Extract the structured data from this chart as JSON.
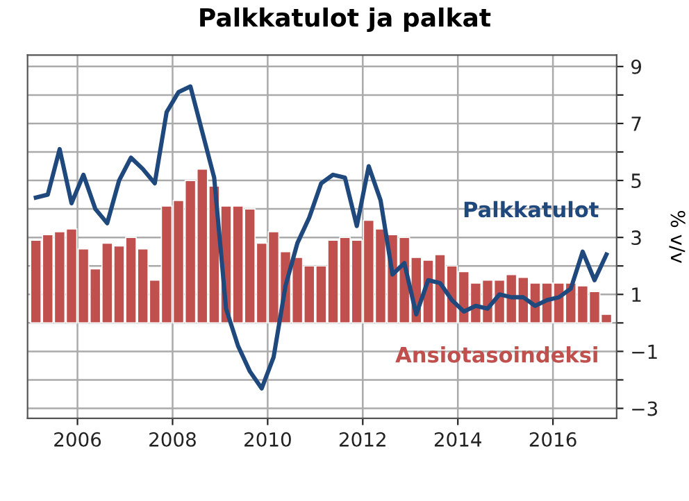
{
  "chart_data": {
    "type": "bar",
    "title": "Palkkatulot ja palkat",
    "ylabel": "% v/v",
    "xlim": [
      2004.95,
      2017.34
    ],
    "xticks": [
      2006,
      2008,
      2010,
      2012,
      2014,
      2016
    ],
    "ylim": [
      -3.35,
      9.4
    ],
    "yticks": [
      9,
      {
        "value": 8,
        "label": null
      },
      7,
      {
        "value": 6,
        "label": null
      },
      5,
      {
        "value": 4,
        "label": null
      },
      3,
      {
        "value": 2,
        "label": null
      },
      1,
      {
        "value": 0,
        "label": null
      },
      -1,
      {
        "value": -2,
        "label": null
      },
      -3
    ],
    "grid": true,
    "legend": false,
    "x": [
      2005.125,
      2005.375,
      2005.625,
      2005.875,
      2006.125,
      2006.375,
      2006.625,
      2006.875,
      2007.125,
      2007.375,
      2007.625,
      2007.875,
      2008.125,
      2008.375,
      2008.625,
      2008.875,
      2009.125,
      2009.375,
      2009.625,
      2009.875,
      2010.125,
      2010.375,
      2010.625,
      2010.875,
      2011.125,
      2011.375,
      2011.625,
      2011.875,
      2012.125,
      2012.375,
      2012.625,
      2012.875,
      2013.125,
      2013.375,
      2013.625,
      2013.875,
      2014.125,
      2014.375,
      2014.625,
      2014.875,
      2015.125,
      2015.375,
      2015.625,
      2015.875,
      2016.125,
      2016.375,
      2016.625,
      2016.875,
      2017.125
    ],
    "series": [
      {
        "name": "Ansiotasoindeksi",
        "color": "#c0504d",
        "values": [
          2.9,
          3.1,
          3.2,
          3.3,
          2.6,
          1.9,
          2.8,
          2.7,
          3.0,
          2.6,
          1.5,
          4.1,
          4.3,
          5.0,
          5.4,
          4.8,
          4.1,
          4.1,
          4.0,
          2.8,
          3.2,
          2.5,
          2.3,
          2.0,
          2.0,
          2.9,
          3.0,
          2.9,
          3.6,
          3.3,
          3.1,
          3.0,
          2.3,
          2.2,
          2.4,
          2.0,
          1.8,
          1.4,
          1.5,
          1.5,
          1.7,
          1.6,
          1.4,
          1.4,
          1.4,
          1.4,
          1.3,
          1.1,
          0.3
        ]
      },
      {
        "name": "Palkkatulot",
        "type": "line",
        "color": "#1f497d",
        "values": [
          4.4,
          4.5,
          6.1,
          4.2,
          5.2,
          4.0,
          3.5,
          5.0,
          5.8,
          5.4,
          4.9,
          7.4,
          8.1,
          8.3,
          6.7,
          5.1,
          0.5,
          -0.8,
          -1.7,
          -2.3,
          -1.2,
          1.3,
          2.8,
          3.7,
          4.9,
          5.2,
          5.1,
          3.4,
          5.5,
          4.3,
          1.7,
          2.1,
          0.3,
          1.5,
          1.4,
          0.8,
          0.4,
          0.6,
          0.5,
          1.0,
          0.9,
          0.9,
          0.6,
          0.8,
          0.9,
          1.2,
          2.5,
          1.5,
          2.4
        ]
      }
    ]
  }
}
